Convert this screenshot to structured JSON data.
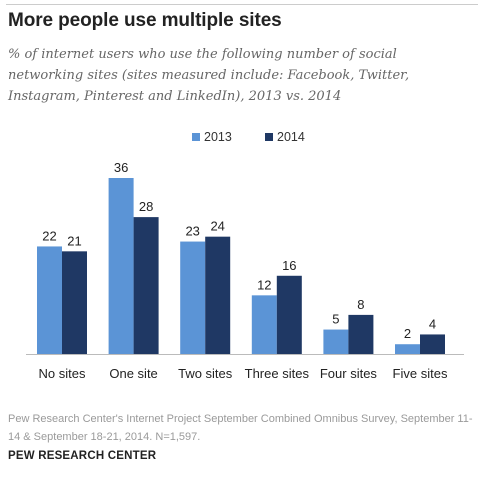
{
  "title": "More people use multiple sites",
  "subtitle": "% of internet users who use the following number of social networking sites (sites measured include: Facebook, Twitter, Instagram, Pinterest and LinkedIn), 2013 vs. 2014",
  "source": "Pew Research Center's Internet Project September Combined Omnibus Survey, September 11-14 & September 18-21, 2014. N=1,597.",
  "brand": "PEW RESEARCH CENTER",
  "colors": {
    "series_2013": "#5b94d6",
    "series_2014": "#1f3864"
  },
  "chart_data": {
    "type": "bar",
    "categories": [
      "No sites",
      "One site",
      "Two sites",
      "Three sites",
      "Four sites",
      "Five sites"
    ],
    "series": [
      {
        "name": "2013",
        "values": [
          22,
          36,
          23,
          12,
          5,
          2
        ]
      },
      {
        "name": "2014",
        "values": [
          21,
          28,
          24,
          16,
          8,
          4
        ]
      }
    ],
    "ylim": [
      0,
      36
    ],
    "legend_position": "top-center",
    "grid": false
  }
}
